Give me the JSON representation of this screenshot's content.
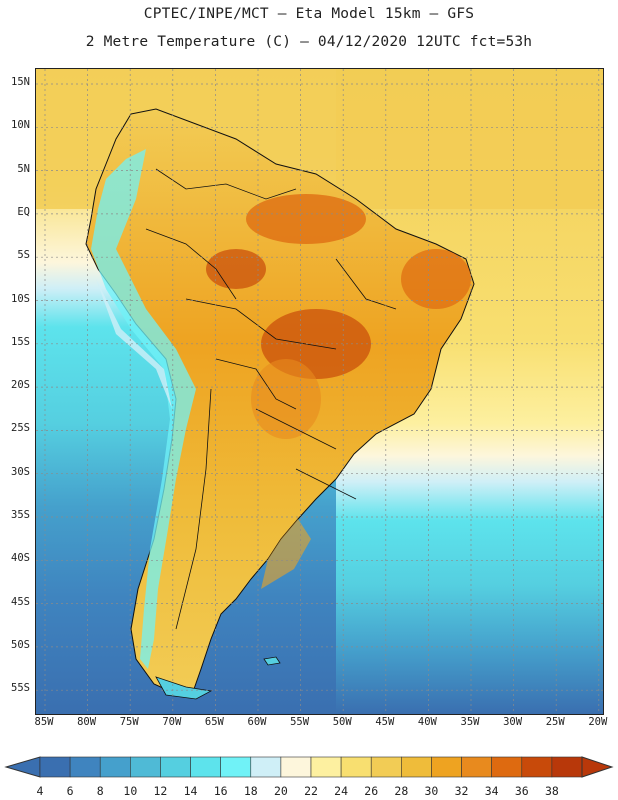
{
  "header": {
    "line1": "CPTEC/INPE/MCT –  Eta Model 15km – GFS",
    "line2": "2 Metre Temperature (C) – 04/12/2020 12UTC fct=53h"
  },
  "axes": {
    "lat_labels": [
      "15N",
      "10N",
      "5N",
      "EQ",
      "5S",
      "10S",
      "15S",
      "20S",
      "25S",
      "30S",
      "35S",
      "40S",
      "45S",
      "50S",
      "55S"
    ],
    "lon_labels": [
      "85W",
      "80W",
      "75W",
      "70W",
      "65W",
      "60W",
      "55W",
      "50W",
      "45W",
      "40W",
      "35W",
      "30W",
      "25W",
      "20W"
    ]
  },
  "colorbar": {
    "labels": [
      "4",
      "6",
      "8",
      "10",
      "12",
      "14",
      "16",
      "18",
      "20",
      "22",
      "24",
      "26",
      "28",
      "30",
      "32",
      "34",
      "36",
      "38"
    ],
    "colors": [
      "#3a6fb0",
      "#3f84bf",
      "#45a0cc",
      "#4fbad6",
      "#55cfe0",
      "#5de3ec",
      "#70f2f7",
      "#cfeff7",
      "#fdf6dc",
      "#fdf0a0",
      "#f8df70",
      "#f2cc55",
      "#efbc3a",
      "#eea321",
      "#e88a1e",
      "#de6a10",
      "#c84a0a",
      "#b8380a"
    ]
  },
  "map": {
    "region": "South America",
    "land_colors": {
      "cool": "#f2cc55",
      "warm": "#eea321",
      "hot": "#de6a10",
      "andes": "#70f2f7"
    },
    "ocean_colors": {
      "tropical": "#f8df70",
      "temperate": "#5de3ec",
      "southern": "#3a6fb0"
    }
  }
}
